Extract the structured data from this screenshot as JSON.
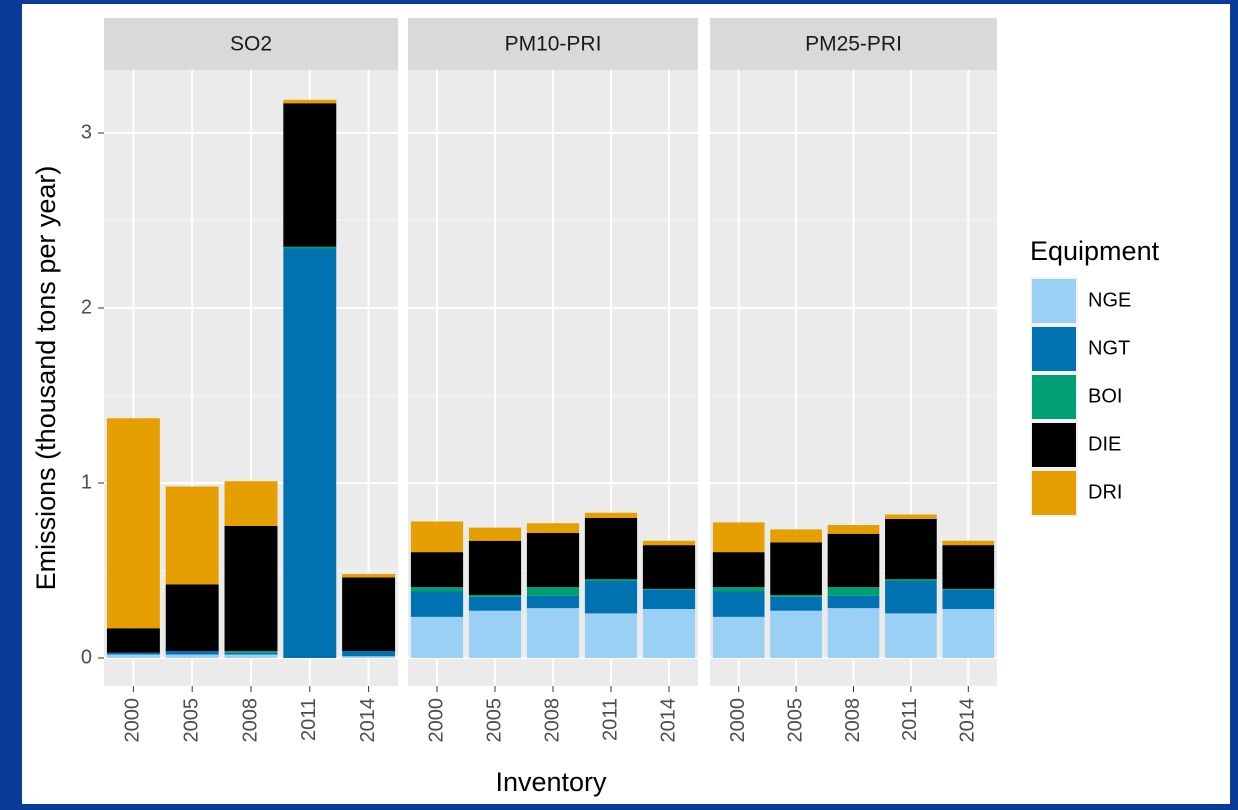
{
  "chart_data": {
    "type": "bar",
    "stacked": true,
    "ylabel": "Emissions (thousand tons per year)",
    "xlabel": "Inventory",
    "legend_title": "Equipment",
    "legend_position": "right",
    "ylim": [
      -0.16,
      3.36
    ],
    "yticks": [
      0,
      1,
      2,
      3
    ],
    "grid": true,
    "series": [
      {
        "name": "NGE",
        "color": "#9ad0f3"
      },
      {
        "name": "NGT",
        "color": "#0072b2"
      },
      {
        "name": "BOI",
        "color": "#009e73"
      },
      {
        "name": "DIE",
        "color": "#000000"
      },
      {
        "name": "DRI",
        "color": "#e69f00"
      }
    ],
    "facets": [
      {
        "title": "SO2",
        "categories": [
          "2000",
          "2005",
          "2008",
          "2011",
          "2014"
        ],
        "series_values": [
          [
            0.02,
            0.02,
            0.02,
            0.0,
            0.01
          ],
          [
            0.01,
            0.02,
            0.01,
            2.34,
            0.03
          ],
          [
            0.0,
            0.0,
            0.01,
            0.01,
            0.0
          ],
          [
            0.14,
            0.38,
            0.715,
            0.82,
            0.42
          ],
          [
            1.2,
            0.56,
            0.255,
            0.02,
            0.02
          ]
        ]
      },
      {
        "title": "PM10-PRI",
        "categories": [
          "2000",
          "2005",
          "2008",
          "2011",
          "2014"
        ],
        "series_values": [
          [
            0.235,
            0.27,
            0.285,
            0.255,
            0.28
          ],
          [
            0.145,
            0.08,
            0.07,
            0.185,
            0.11
          ],
          [
            0.025,
            0.01,
            0.05,
            0.01,
            0.005
          ],
          [
            0.2,
            0.31,
            0.31,
            0.35,
            0.25
          ],
          [
            0.175,
            0.075,
            0.055,
            0.03,
            0.025
          ]
        ]
      },
      {
        "title": "PM25-PRI",
        "categories": [
          "2000",
          "2005",
          "2008",
          "2011",
          "2014"
        ],
        "series_values": [
          [
            0.235,
            0.27,
            0.285,
            0.255,
            0.28
          ],
          [
            0.145,
            0.08,
            0.07,
            0.185,
            0.11
          ],
          [
            0.025,
            0.01,
            0.05,
            0.01,
            0.005
          ],
          [
            0.2,
            0.3,
            0.305,
            0.345,
            0.25
          ],
          [
            0.17,
            0.075,
            0.05,
            0.025,
            0.025
          ]
        ]
      }
    ]
  }
}
